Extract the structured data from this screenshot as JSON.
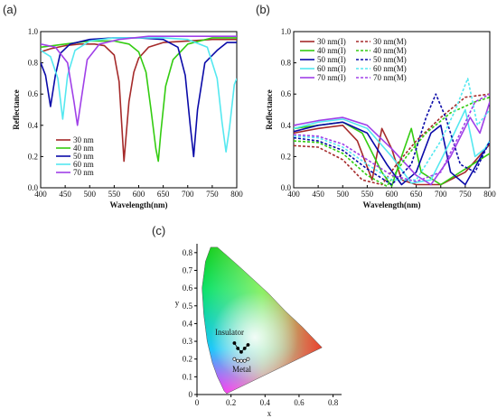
{
  "panels": {
    "a": "(a)",
    "b": "(b)",
    "c": "(c)"
  },
  "chart_data": [
    {
      "type": "line",
      "panel": "(a)",
      "xlabel": "Wavelength(nm)",
      "ylabel": "Reflectance",
      "xlim": [
        400,
        800
      ],
      "ylim": [
        0.0,
        1.0
      ],
      "xticks": [
        "400",
        "450",
        "500",
        "550",
        "600",
        "650",
        "700",
        "750",
        "800"
      ],
      "yticks": [
        "0.0",
        "0.2",
        "0.4",
        "0.6",
        "0.8",
        "1.0"
      ],
      "legend_position": "left",
      "series": [
        {
          "name": "30 nm",
          "color": "#a52a2a",
          "x": [
            400,
            420,
            450,
            480,
            510,
            530,
            550,
            560,
            570,
            580,
            590,
            600,
            620,
            650,
            700,
            750,
            800
          ],
          "y": [
            0.87,
            0.89,
            0.91,
            0.92,
            0.92,
            0.91,
            0.85,
            0.68,
            0.17,
            0.55,
            0.74,
            0.83,
            0.9,
            0.93,
            0.94,
            0.95,
            0.95
          ]
        },
        {
          "name": "40 nm",
          "color": "#33cc11",
          "x": [
            400,
            450,
            500,
            550,
            580,
            600,
            615,
            625,
            635,
            640,
            645,
            655,
            670,
            700,
            750,
            800
          ],
          "y": [
            0.9,
            0.92,
            0.94,
            0.94,
            0.92,
            0.87,
            0.74,
            0.5,
            0.25,
            0.17,
            0.35,
            0.65,
            0.82,
            0.92,
            0.96,
            0.96
          ]
        },
        {
          "name": "50 nm",
          "color": "#0a0aa8",
          "x": [
            400,
            410,
            420,
            430,
            440,
            460,
            500,
            550,
            600,
            650,
            680,
            695,
            705,
            712,
            720,
            735,
            760,
            780,
            800
          ],
          "y": [
            0.8,
            0.72,
            0.52,
            0.72,
            0.86,
            0.92,
            0.95,
            0.96,
            0.96,
            0.95,
            0.9,
            0.72,
            0.4,
            0.2,
            0.5,
            0.8,
            0.88,
            0.93,
            0.93
          ]
        },
        {
          "name": "60 nm",
          "color": "#55e8f0",
          "x": [
            400,
            420,
            435,
            445,
            455,
            470,
            500,
            550,
            600,
            650,
            700,
            740,
            760,
            770,
            778,
            785,
            795,
            800
          ],
          "y": [
            0.88,
            0.84,
            0.7,
            0.44,
            0.72,
            0.88,
            0.94,
            0.96,
            0.96,
            0.96,
            0.95,
            0.9,
            0.7,
            0.42,
            0.23,
            0.38,
            0.66,
            0.7
          ]
        },
        {
          "name": "70 nm",
          "color": "#a040e8",
          "x": [
            400,
            430,
            455,
            468,
            475,
            482,
            495,
            520,
            560,
            620,
            700,
            800
          ],
          "y": [
            0.92,
            0.9,
            0.8,
            0.55,
            0.4,
            0.55,
            0.82,
            0.92,
            0.95,
            0.97,
            0.97,
            0.97
          ]
        }
      ]
    },
    {
      "type": "line",
      "panel": "(b)",
      "xlabel": "Wavelength(nm)",
      "ylabel": "Reflectance",
      "xlim": [
        400,
        800
      ],
      "ylim": [
        0.0,
        1.0
      ],
      "xticks": [
        "400",
        "450",
        "500",
        "550",
        "600",
        "650",
        "700",
        "750",
        "800"
      ],
      "yticks": [
        "0.0",
        "0.2",
        "0.4",
        "0.6",
        "0.8",
        "1.0"
      ],
      "legend_position": "top-left",
      "series": [
        {
          "name": "30 nm(I)",
          "style": "solid",
          "color": "#a52a2a",
          "x": [
            400,
            450,
            500,
            530,
            560,
            580,
            600,
            620,
            650,
            700,
            750,
            800
          ],
          "y": [
            0.35,
            0.38,
            0.4,
            0.3,
            0.05,
            0.38,
            0.25,
            0.05,
            0.02,
            0.02,
            0.1,
            0.28
          ]
        },
        {
          "name": "40 nm(I)",
          "style": "solid",
          "color": "#33cc11",
          "x": [
            400,
            450,
            500,
            540,
            580,
            600,
            620,
            640,
            660,
            700,
            750,
            800
          ],
          "y": [
            0.38,
            0.4,
            0.42,
            0.35,
            0.1,
            0.01,
            0.2,
            0.38,
            0.1,
            0.02,
            0.12,
            0.22
          ]
        },
        {
          "name": "50 nm(I)",
          "style": "solid",
          "color": "#0a0aa8",
          "x": [
            400,
            450,
            500,
            550,
            590,
            620,
            650,
            680,
            700,
            720,
            750,
            800
          ],
          "y": [
            0.36,
            0.4,
            0.42,
            0.35,
            0.15,
            0.02,
            0.1,
            0.35,
            0.4,
            0.1,
            0.02,
            0.3
          ]
        },
        {
          "name": "60 nm(I)",
          "style": "solid",
          "color": "#55e8f0",
          "x": [
            400,
            450,
            500,
            550,
            600,
            640,
            680,
            720,
            750,
            770,
            790,
            800
          ],
          "y": [
            0.38,
            0.42,
            0.44,
            0.38,
            0.2,
            0.03,
            0.05,
            0.3,
            0.5,
            0.2,
            0.25,
            0.3
          ]
        },
        {
          "name": "70 nm(I)",
          "style": "solid",
          "color": "#a040e8",
          "x": [
            400,
            450,
            500,
            550,
            600,
            650,
            680,
            720,
            760,
            780,
            800
          ],
          "y": [
            0.4,
            0.43,
            0.45,
            0.4,
            0.25,
            0.08,
            0.02,
            0.2,
            0.45,
            0.35,
            0.55
          ]
        },
        {
          "name": "30 nm(M)",
          "style": "dashed",
          "color": "#a52a2a",
          "x": [
            400,
            450,
            500,
            540,
            580,
            610,
            650,
            700,
            750,
            800
          ],
          "y": [
            0.27,
            0.26,
            0.18,
            0.05,
            0.02,
            0.15,
            0.3,
            0.45,
            0.58,
            0.6
          ]
        },
        {
          "name": "40 nm(M)",
          "style": "dashed",
          "color": "#33cc11",
          "x": [
            400,
            450,
            500,
            550,
            590,
            630,
            670,
            720,
            770,
            800
          ],
          "y": [
            0.3,
            0.29,
            0.22,
            0.08,
            0.01,
            0.2,
            0.35,
            0.48,
            0.55,
            0.58
          ]
        },
        {
          "name": "50 nm(M)",
          "style": "dashed",
          "color": "#0a0aa8",
          "x": [
            400,
            450,
            500,
            550,
            600,
            640,
            670,
            690,
            710,
            740,
            770,
            800
          ],
          "y": [
            0.32,
            0.3,
            0.24,
            0.12,
            0.02,
            0.15,
            0.45,
            0.6,
            0.45,
            0.15,
            0.1,
            0.3
          ]
        },
        {
          "name": "60 nm(M)",
          "style": "dashed",
          "color": "#55e8f0",
          "x": [
            400,
            450,
            500,
            550,
            600,
            650,
            700,
            730,
            755,
            775,
            800
          ],
          "y": [
            0.33,
            0.32,
            0.26,
            0.15,
            0.05,
            0.05,
            0.3,
            0.5,
            0.7,
            0.4,
            0.5
          ]
        },
        {
          "name": "70 nm(M)",
          "style": "dashed",
          "color": "#a040e8",
          "x": [
            400,
            450,
            500,
            550,
            600,
            650,
            700,
            740,
            770,
            800
          ],
          "y": [
            0.34,
            0.33,
            0.28,
            0.18,
            0.08,
            0.04,
            0.1,
            0.35,
            0.55,
            0.6
          ]
        }
      ]
    },
    {
      "type": "scatter",
      "panel": "(c)",
      "xlabel": "x",
      "ylabel": "y",
      "xlim": [
        0,
        0.85
      ],
      "ylim": [
        0,
        0.85
      ],
      "xticks": [
        "0",
        "0.2",
        "0.4",
        "0.6",
        "0.8"
      ],
      "yticks": [
        "0",
        "0.1",
        "0.2",
        "0.3",
        "0.4",
        "0.5",
        "0.6",
        "0.7",
        "0.8"
      ],
      "annotations": [
        "Insulator",
        "Metal"
      ],
      "series": [
        {
          "name": "Insulator",
          "marker": "filled",
          "x": [
            0.22,
            0.24,
            0.26,
            0.28,
            0.3
          ],
          "y": [
            0.29,
            0.26,
            0.24,
            0.26,
            0.28
          ]
        },
        {
          "name": "Metal",
          "marker": "open",
          "x": [
            0.22,
            0.24,
            0.26,
            0.28,
            0.3
          ],
          "y": [
            0.2,
            0.19,
            0.19,
            0.19,
            0.2
          ]
        }
      ]
    }
  ]
}
